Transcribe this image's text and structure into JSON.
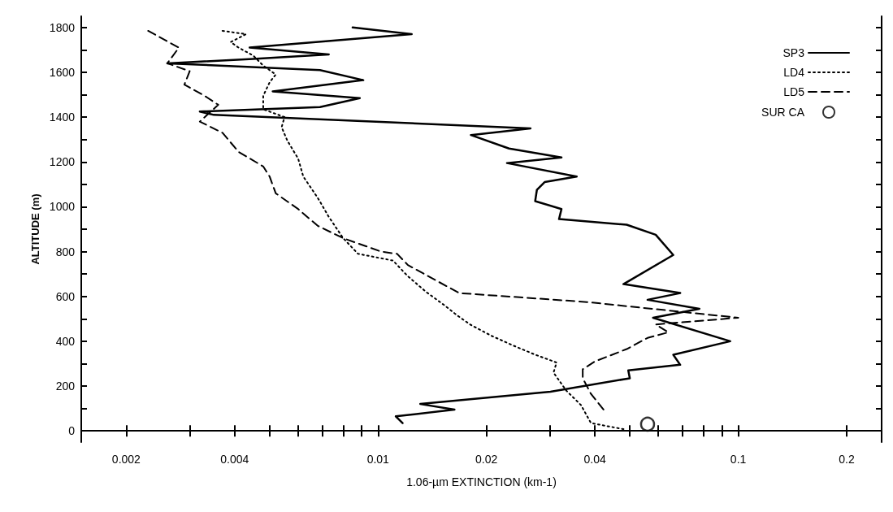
{
  "chart_data": {
    "type": "line",
    "xlabel": "1.06-µm EXTINCTION (km-1)",
    "ylabel": "ALTITUDE (m)",
    "log": "x",
    "grid": false,
    "legend": "top right",
    "xlim": [
      0.0015,
      0.25
    ],
    "ylim": [
      -50,
      1850
    ],
    "xticks": [
      0.002,
      {
        "value": 0.003,
        "label": null
      },
      0.004,
      {
        "value": 0.005,
        "label": null
      },
      {
        "value": 0.006,
        "label": null
      },
      {
        "value": 0.007,
        "label": null
      },
      {
        "value": 0.008,
        "label": null
      },
      {
        "value": 0.009,
        "label": null
      },
      0.01,
      0.02,
      {
        "value": 0.03,
        "label": null
      },
      0.04,
      {
        "value": 0.05,
        "label": null
      },
      {
        "value": 0.06,
        "label": null
      },
      {
        "value": 0.07,
        "label": null
      },
      {
        "value": 0.08,
        "label": null
      },
      {
        "value": 0.09,
        "label": null
      },
      0.1,
      0.2
    ],
    "yticks": [
      0,
      {
        "value": 100,
        "label": null
      },
      200,
      {
        "value": 300,
        "label": null
      },
      400,
      {
        "value": 500,
        "label": null
      },
      600,
      {
        "value": 700,
        "label": null
      },
      800,
      {
        "value": 900,
        "label": null
      },
      1000,
      {
        "value": 1100,
        "label": null
      },
      1200,
      {
        "value": 1300,
        "label": null
      },
      1400,
      {
        "value": 1500,
        "label": null
      },
      1600,
      {
        "value": 1700,
        "label": null
      },
      1800
    ],
    "series": [
      {
        "name": "SP3",
        "color": "#000000",
        "line_style": "solid",
        "marker": "none",
        "x": [
          0.0085,
          0.0124,
          0.0044,
          0.0073,
          0.0045,
          0.0026,
          0.0069,
          0.0091,
          0.0051,
          0.0089,
          0.0069,
          0.0032,
          0.0035,
          0.0265,
          0.0181,
          0.0231,
          0.0323,
          0.0228,
          0.0356,
          0.029,
          0.0276,
          0.0273,
          0.0323,
          0.0318,
          0.049,
          0.059,
          0.066,
          0.048,
          0.069,
          0.056,
          0.078,
          0.058,
          0.095,
          0.066,
          0.069,
          0.0495,
          0.05,
          0.0301,
          0.0131,
          0.0163,
          0.0112,
          0.0117
        ],
        "values": [
          1800,
          1770,
          1710,
          1680,
          1660,
          1640,
          1610,
          1565,
          1515,
          1485,
          1445,
          1425,
          1410,
          1350,
          1320,
          1260,
          1220,
          1195,
          1135,
          1110,
          1075,
          1025,
          990,
          945,
          920,
          875,
          785,
          655,
          615,
          585,
          545,
          505,
          400,
          340,
          295,
          270,
          235,
          175,
          120,
          95,
          65,
          35
        ]
      },
      {
        "name": "LD4",
        "color": "#000000",
        "line_style": "dotted",
        "marker": "none",
        "x": [
          0.0037,
          0.0043,
          0.0039,
          0.0041,
          0.0045,
          0.0048,
          0.0052,
          0.005,
          0.0048,
          0.0048,
          0.0055,
          0.0054,
          0.0056,
          0.006,
          0.0062,
          0.0068,
          0.0073,
          0.008,
          0.0088,
          0.011,
          0.0121,
          0.0136,
          0.0153,
          0.0166,
          0.018,
          0.0206,
          0.0238,
          0.0273,
          0.0313,
          0.0307,
          0.0333,
          0.0366,
          0.039,
          0.049
        ],
        "values": [
          1785,
          1770,
          1735,
          1710,
          1675,
          1630,
          1590,
          1555,
          1495,
          1435,
          1400,
          1355,
          1295,
          1215,
          1135,
          1040,
          955,
          860,
          790,
          760,
          690,
          620,
          560,
          515,
          475,
          425,
          380,
          340,
          305,
          260,
          180,
          115,
          35,
          5
        ]
      },
      {
        "name": "LD5",
        "color": "#000000",
        "line_style": "dashed",
        "marker": "none",
        "x": [
          0.0023,
          0.0028,
          0.0026,
          0.003,
          0.0029,
          0.0033,
          0.0036,
          0.0032,
          0.0037,
          0.0041,
          0.0048,
          0.005,
          0.0052,
          0.006,
          0.0068,
          0.008,
          0.0102,
          0.0113,
          0.0121,
          0.0168,
          0.038,
          0.1,
          0.059,
          0.064,
          0.056,
          0.049,
          0.04,
          0.037,
          0.037,
          0.039,
          0.043
        ],
        "values": [
          1785,
          1710,
          1640,
          1605,
          1545,
          1495,
          1455,
          1380,
          1330,
          1245,
          1180,
          1135,
          1060,
          990,
          915,
          860,
          800,
          790,
          740,
          615,
          575,
          505,
          475,
          440,
          415,
          365,
          310,
          275,
          235,
          165,
          80
        ]
      },
      {
        "name": "SUR CA",
        "type": "scatter",
        "color": "#000000",
        "marker": "circle",
        "x": [
          0.056
        ],
        "values": [
          30
        ]
      }
    ]
  }
}
